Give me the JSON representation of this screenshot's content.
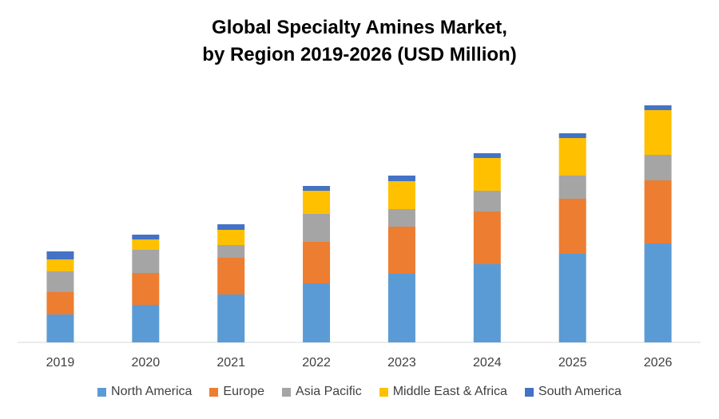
{
  "chart_data": {
    "type": "bar",
    "stacked": true,
    "title": "Global Specialty Amines Market,",
    "subtitle": "by Region 2019-2026 (USD Million)",
    "xlabel": "",
    "ylabel": "",
    "categories": [
      "2019",
      "2020",
      "2021",
      "2022",
      "2023",
      "2024",
      "2025",
      "2026"
    ],
    "series": [
      {
        "name": "North America",
        "color": "#5B9BD5",
        "values": [
          35,
          47,
          60,
          74,
          86,
          98,
          111,
          124
        ]
      },
      {
        "name": "Europe",
        "color": "#ED7D31",
        "values": [
          28,
          40,
          46,
          52,
          59,
          66,
          69,
          79
        ]
      },
      {
        "name": "Asia Pacific",
        "color": "#A5A5A5",
        "values": [
          26,
          29,
          16,
          35,
          22,
          26,
          29,
          32
        ]
      },
      {
        "name": "Middle East & Africa",
        "color": "#FFC000",
        "values": [
          15,
          13,
          19,
          29,
          35,
          41,
          47,
          56
        ]
      },
      {
        "name": "South America",
        "color": "#4472C4",
        "values": [
          10,
          6,
          7,
          6,
          7,
          6,
          6,
          6
        ]
      }
    ],
    "grid": false,
    "legend_position": "bottom"
  }
}
